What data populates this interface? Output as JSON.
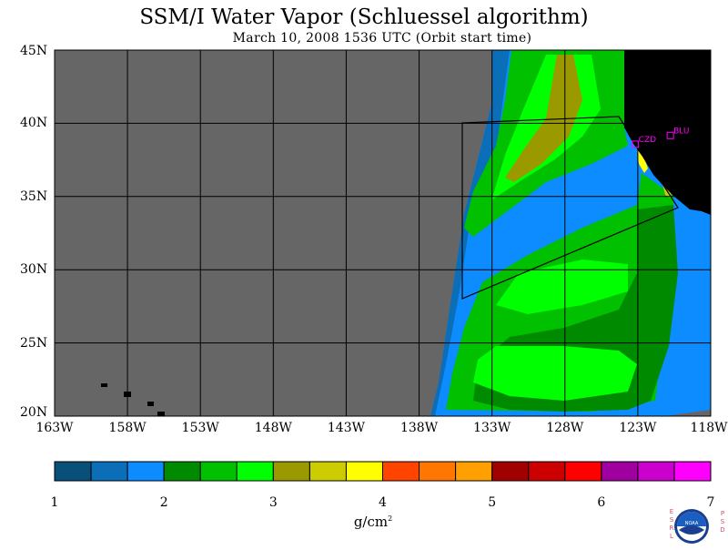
{
  "header": {
    "title": "SSM/I Water Vapor (Schluessel algorithm)",
    "subtitle": "March 10, 2008  1536 UTC  (Orbit start time)"
  },
  "map": {
    "lat_labels": [
      "45N",
      "40N",
      "35N",
      "30N",
      "25N",
      "20N"
    ],
    "lat_values": [
      45,
      40,
      35,
      30,
      25,
      20
    ],
    "lon_labels": [
      "163W",
      "158W",
      "153W",
      "148W",
      "143W",
      "138W",
      "133W",
      "128W",
      "123W",
      "118W"
    ],
    "lon_values": [
      -163,
      -158,
      -153,
      -148,
      -143,
      -138,
      -133,
      -128,
      -123,
      -118
    ],
    "lat_range": [
      20,
      45
    ],
    "lon_range": [
      -163,
      -118
    ],
    "stations": [
      {
        "label": "CZD",
        "lat": 38.6,
        "lon": -123.2
      },
      {
        "label": "BLU",
        "lat": 39.2,
        "lon": -120.8
      }
    ],
    "colors": {
      "no_data": "#666666",
      "land": "#000000",
      "grid": "#000000",
      "station": "#ff00ff"
    }
  },
  "colorbar": {
    "unit_base": "g/cm",
    "unit_exp": "2",
    "tick_labels": [
      "1",
      "2",
      "3",
      "4",
      "5",
      "6",
      "7"
    ],
    "range": [
      1,
      7
    ],
    "colors": [
      "#08507a",
      "#0a6eb8",
      "#0c8cff",
      "#008a00",
      "#00c000",
      "#00ff00",
      "#9a9a00",
      "#cccc00",
      "#ffff00",
      "#ff4400",
      "#ff7700",
      "#ffa000",
      "#a00000",
      "#cc0000",
      "#ff0000",
      "#a000a0",
      "#cc00cc",
      "#ff00ff"
    ]
  },
  "logo": {
    "left_letters": [
      "E",
      "S",
      "R",
      "L"
    ],
    "right_letters": [
      "P",
      "S",
      "D"
    ],
    "center_text": "NOAA"
  }
}
